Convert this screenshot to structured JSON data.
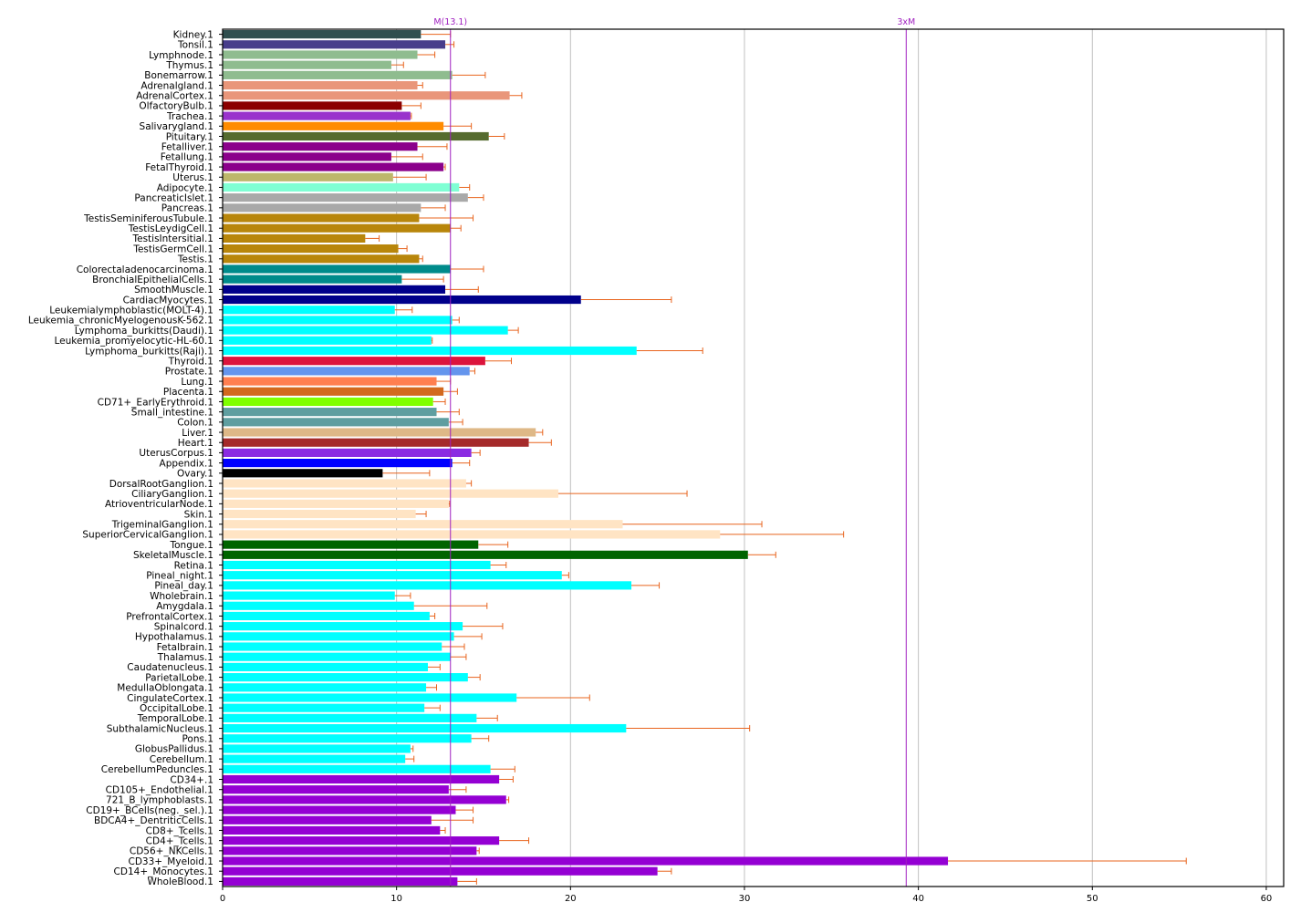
{
  "chart_data": {
    "type": "bar",
    "orientation": "horizontal",
    "title": "",
    "xlabel": "",
    "ylabel": "",
    "xlim": [
      0,
      61
    ],
    "xticks": [
      0,
      10,
      20,
      30,
      40,
      50,
      60
    ],
    "grid": "vertical",
    "reference_lines": [
      {
        "label": "M(13.1)",
        "value": 13.1,
        "color": "#a020c0"
      },
      {
        "label": "3xM",
        "value": 39.3,
        "color": "#a020c0"
      }
    ],
    "error_color": "#e8641e",
    "bars": [
      {
        "label": "Kidney.1",
        "value": 11.4,
        "error": 1.7,
        "color": "#2f4f4f"
      },
      {
        "label": "Tonsil.1",
        "value": 12.8,
        "error": 0.5,
        "color": "#483d8b"
      },
      {
        "label": "Lymphnode.1",
        "value": 11.2,
        "error": 1.0,
        "color": "#8fbc8f"
      },
      {
        "label": "Thymus.1",
        "value": 9.7,
        "error": 0.7,
        "color": "#8fbc8f"
      },
      {
        "label": "Bonemarrow.1",
        "value": 13.2,
        "error": 1.9,
        "color": "#8fbc8f"
      },
      {
        "label": "Adrenalgland.1",
        "value": 11.2,
        "error": 0.3,
        "color": "#e9967a"
      },
      {
        "label": "AdrenalCortex.1",
        "value": 16.5,
        "error": 0.7,
        "color": "#e9967a"
      },
      {
        "label": "OlfactoryBulb.1",
        "value": 10.3,
        "error": 1.1,
        "color": "#8b0000"
      },
      {
        "label": "Trachea.1",
        "value": 10.8,
        "error": 0.05,
        "color": "#9932cc"
      },
      {
        "label": "Salivarygland.1",
        "value": 12.7,
        "error": 1.6,
        "color": "#ff8c00"
      },
      {
        "label": "Pituitary.1",
        "value": 15.3,
        "error": 0.9,
        "color": "#556b2f"
      },
      {
        "label": "Fetalliver.1",
        "value": 11.2,
        "error": 1.7,
        "color": "#8b008b"
      },
      {
        "label": "Fetallung.1",
        "value": 9.7,
        "error": 1.8,
        "color": "#8b008b"
      },
      {
        "label": "FetalThyroid.1",
        "value": 12.7,
        "error": 0.1,
        "color": "#8b008b"
      },
      {
        "label": "Uterus.1",
        "value": 9.8,
        "error": 1.9,
        "color": "#bdb76b"
      },
      {
        "label": "Adipocyte.1",
        "value": 13.6,
        "error": 0.6,
        "color": "#7fffd4"
      },
      {
        "label": "PancreaticIslet.1",
        "value": 14.1,
        "error": 0.9,
        "color": "#a9a9a9"
      },
      {
        "label": "Pancreas.1",
        "value": 11.4,
        "error": 1.4,
        "color": "#a9a9a9"
      },
      {
        "label": "TestisSeminiferousTubule.1",
        "value": 11.3,
        "error": 3.1,
        "color": "#b8860b"
      },
      {
        "label": "TestisLeydigCell.1",
        "value": 13.1,
        "error": 0.6,
        "color": "#b8860b"
      },
      {
        "label": "TestisIntersitial.1",
        "value": 8.2,
        "error": 0.8,
        "color": "#b8860b"
      },
      {
        "label": "TestisGermCell.1",
        "value": 10.1,
        "error": 0.5,
        "color": "#b8860b"
      },
      {
        "label": "Testis.1",
        "value": 11.3,
        "error": 0.2,
        "color": "#b8860b"
      },
      {
        "label": "Colorectaladenocarcinoma.1",
        "value": 13.1,
        "error": 1.9,
        "color": "#008b8b"
      },
      {
        "label": "BronchialEpithelialCells.1",
        "value": 10.3,
        "error": 2.4,
        "color": "#008b8b"
      },
      {
        "label": "SmoothMuscle.1",
        "value": 12.8,
        "error": 1.9,
        "color": "#00008b"
      },
      {
        "label": "CardiacMyocytes.1",
        "value": 20.6,
        "error": 5.2,
        "color": "#00008b"
      },
      {
        "label": "Leukemialymphoblastic(MOLT-4).1",
        "value": 9.9,
        "error": 1.0,
        "color": "#00ffff"
      },
      {
        "label": "Leukemia_chronicMyelogenousK-562.1",
        "value": 13.2,
        "error": 0.4,
        "color": "#00ffff"
      },
      {
        "label": "Lymphoma_burkitts(Daudi).1",
        "value": 16.4,
        "error": 0.6,
        "color": "#00ffff"
      },
      {
        "label": "Leukemia_promyelocytic-HL-60.1",
        "value": 12.0,
        "error": 0.05,
        "color": "#00ffff"
      },
      {
        "label": "Lymphoma_burkitts(Raji).1",
        "value": 23.8,
        "error": 3.8,
        "color": "#00ffff"
      },
      {
        "label": "Thyroid.1",
        "value": 15.1,
        "error": 1.5,
        "color": "#dc143c"
      },
      {
        "label": "Prostate.1",
        "value": 14.2,
        "error": 0.3,
        "color": "#6495ed"
      },
      {
        "label": "Lung.1",
        "value": 12.3,
        "error": 0.8,
        "color": "#ff7f50"
      },
      {
        "label": "Placenta.1",
        "value": 12.7,
        "error": 0.8,
        "color": "#d2691e"
      },
      {
        "label": "CD71+_EarlyErythroid.1",
        "value": 12.1,
        "error": 0.7,
        "color": "#7fff00"
      },
      {
        "label": "Small_intestine.1",
        "value": 12.3,
        "error": 1.3,
        "color": "#5f9ea0"
      },
      {
        "label": "Colon.1",
        "value": 13.0,
        "error": 0.8,
        "color": "#5f9ea0"
      },
      {
        "label": "Liver.1",
        "value": 18.0,
        "error": 0.4,
        "color": "#deb887"
      },
      {
        "label": "Heart.1",
        "value": 17.6,
        "error": 1.3,
        "color": "#a52a2a"
      },
      {
        "label": "UterusCorpus.1",
        "value": 14.3,
        "error": 0.5,
        "color": "#8a2be2"
      },
      {
        "label": "Appendix.1",
        "value": 13.2,
        "error": 1.0,
        "color": "#0000ff"
      },
      {
        "label": "Ovary.1",
        "value": 9.2,
        "error": 2.7,
        "color": "#000000"
      },
      {
        "label": "DorsalRootGanglion.1",
        "value": 14.0,
        "error": 0.3,
        "color": "#ffe4c4"
      },
      {
        "label": "CiliaryGanglion.1",
        "value": 19.3,
        "error": 7.4,
        "color": "#ffe4c4"
      },
      {
        "label": "AtrioventricularNode.1",
        "value": 13.0,
        "error": 0.05,
        "color": "#ffe4c4"
      },
      {
        "label": "Skin.1",
        "value": 11.1,
        "error": 0.6,
        "color": "#ffe4c4"
      },
      {
        "label": "TrigeminalGanglion.1",
        "value": 23.0,
        "error": 8.0,
        "color": "#ffe4c4"
      },
      {
        "label": "SuperiorCervicalGanglion.1",
        "value": 28.6,
        "error": 7.1,
        "color": "#ffe4c4"
      },
      {
        "label": "Tongue.1",
        "value": 14.7,
        "error": 1.7,
        "color": "#006400"
      },
      {
        "label": "SkeletalMuscle.1",
        "value": 30.2,
        "error": 1.6,
        "color": "#006400"
      },
      {
        "label": "Retina.1",
        "value": 15.4,
        "error": 0.9,
        "color": "#00ffff"
      },
      {
        "label": "Pineal_night.1",
        "value": 19.5,
        "error": 0.4,
        "color": "#00ffff"
      },
      {
        "label": "Pineal_day.1",
        "value": 23.5,
        "error": 1.6,
        "color": "#00ffff"
      },
      {
        "label": "Wholebrain.1",
        "value": 9.9,
        "error": 0.9,
        "color": "#00ffff"
      },
      {
        "label": "Amygdala.1",
        "value": 11.0,
        "error": 4.2,
        "color": "#00ffff"
      },
      {
        "label": "PrefrontalCortex.1",
        "value": 11.9,
        "error": 0.3,
        "color": "#00ffff"
      },
      {
        "label": "Spinalcord.1",
        "value": 13.8,
        "error": 2.3,
        "color": "#00ffff"
      },
      {
        "label": "Hypothalamus.1",
        "value": 13.3,
        "error": 1.6,
        "color": "#00ffff"
      },
      {
        "label": "Fetalbrain.1",
        "value": 12.6,
        "error": 1.3,
        "color": "#00ffff"
      },
      {
        "label": "Thalamus.1",
        "value": 13.1,
        "error": 0.9,
        "color": "#00ffff"
      },
      {
        "label": "Caudatenucleus.1",
        "value": 11.8,
        "error": 0.7,
        "color": "#00ffff"
      },
      {
        "label": "ParietalLobe.1",
        "value": 14.1,
        "error": 0.7,
        "color": "#00ffff"
      },
      {
        "label": "MedullaOblongata.1",
        "value": 11.7,
        "error": 0.6,
        "color": "#00ffff"
      },
      {
        "label": "CingulateCortex.1",
        "value": 16.9,
        "error": 4.2,
        "color": "#00ffff"
      },
      {
        "label": "OccipitalLobe.1",
        "value": 11.6,
        "error": 0.9,
        "color": "#00ffff"
      },
      {
        "label": "TemporalLobe.1",
        "value": 14.6,
        "error": 1.2,
        "color": "#00ffff"
      },
      {
        "label": "SubthalamicNucleus.1",
        "value": 23.2,
        "error": 7.1,
        "color": "#00ffff"
      },
      {
        "label": "Pons.1",
        "value": 14.3,
        "error": 1.0,
        "color": "#00ffff"
      },
      {
        "label": "GlobusPallidus.1",
        "value": 10.8,
        "error": 0.15,
        "color": "#00ffff"
      },
      {
        "label": "Cerebellum.1",
        "value": 10.5,
        "error": 0.5,
        "color": "#00ffff"
      },
      {
        "label": "CerebellumPeduncles.1",
        "value": 15.4,
        "error": 1.4,
        "color": "#00ffff"
      },
      {
        "label": "CD34+.1",
        "value": 15.9,
        "error": 0.8,
        "color": "#9400d3"
      },
      {
        "label": "CD105+_Endothelial.1",
        "value": 13.0,
        "error": 1.0,
        "color": "#9400d3"
      },
      {
        "label": "721_B_lymphoblasts.1",
        "value": 16.3,
        "error": 0.15,
        "color": "#9400d3"
      },
      {
        "label": "CD19+_BCells(neg._sel.).1",
        "value": 13.4,
        "error": 1.0,
        "color": "#9400d3"
      },
      {
        "label": "BDCA4+_DentriticCells.1",
        "value": 12.0,
        "error": 2.4,
        "color": "#9400d3"
      },
      {
        "label": "CD8+_Tcells.1",
        "value": 12.5,
        "error": 0.3,
        "color": "#9400d3"
      },
      {
        "label": "CD4+_Tcells.1",
        "value": 15.9,
        "error": 1.7,
        "color": "#9400d3"
      },
      {
        "label": "CD56+_NKCells.1",
        "value": 14.6,
        "error": 0.15,
        "color": "#9400d3"
      },
      {
        "label": "CD33+_Myeloid.1",
        "value": 41.7,
        "error": 13.7,
        "color": "#9400d3"
      },
      {
        "label": "CD14+_Monocytes.1",
        "value": 25.0,
        "error": 0.8,
        "color": "#9400d3"
      },
      {
        "label": "WholeBlood.1",
        "value": 13.5,
        "error": 1.1,
        "color": "#9400d3"
      }
    ]
  }
}
